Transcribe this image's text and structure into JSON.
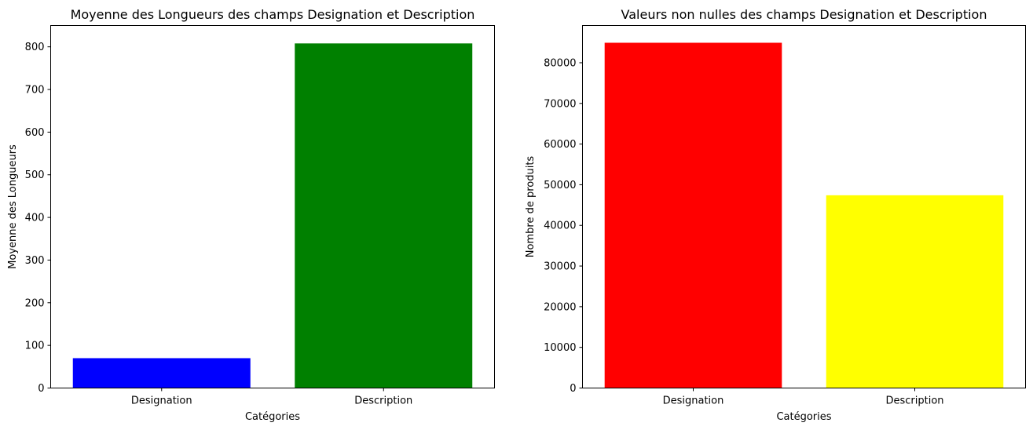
{
  "chart_data": [
    {
      "type": "bar",
      "title": "Moyenne des Longueurs des champs Designation et Description",
      "xlabel": "Catégories",
      "ylabel": "Moyenne des Longueurs",
      "categories": [
        "Designation",
        "Description"
      ],
      "values": [
        70,
        808
      ],
      "colors": [
        "#0000ff",
        "#008000"
      ],
      "ylim": [
        0,
        850
      ],
      "yticks": [
        0,
        100,
        200,
        300,
        400,
        500,
        600,
        700,
        800
      ],
      "grid": false
    },
    {
      "type": "bar",
      "title": "Valeurs non nulles des champs Designation et Description",
      "xlabel": "Catégories",
      "ylabel": "Nombre de produits",
      "categories": [
        "Designation",
        "Description"
      ],
      "values": [
        84916,
        47407
      ],
      "colors": [
        "#ff0000",
        "#ffff00"
      ],
      "ylim": [
        0,
        89160
      ],
      "yticks": [
        0,
        10000,
        20000,
        30000,
        40000,
        50000,
        60000,
        70000,
        80000
      ],
      "grid": false
    }
  ]
}
